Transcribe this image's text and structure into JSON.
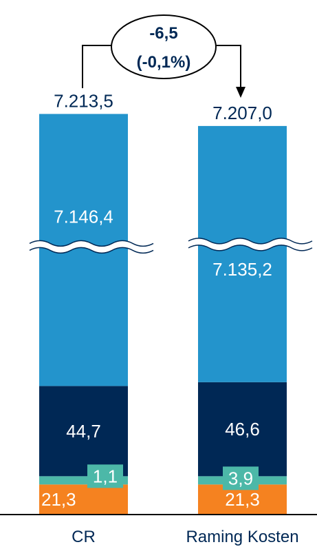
{
  "chart_data": {
    "type": "bar",
    "stacked": true,
    "axis_break": true,
    "categories": [
      "CR",
      "Raming Kosten"
    ],
    "totals": [
      "7.213,5",
      "7.207,0"
    ],
    "series": [
      {
        "values": [
          21.3,
          21.3
        ],
        "labels": [
          "21,3",
          "21,3"
        ],
        "color": "#f58220",
        "label_color": "#ffffff"
      },
      {
        "values": [
          1.1,
          3.9
        ],
        "labels": [
          "1,1",
          "3,9"
        ],
        "color": "#4cb8a8",
        "label_color": "#ffffff"
      },
      {
        "values": [
          44.7,
          46.6
        ],
        "labels": [
          "44,7",
          "46,6"
        ],
        "color": "#002855",
        "label_color": "#ffffff"
      },
      {
        "values": [
          7146.4,
          7135.2
        ],
        "labels": [
          "7.146,4",
          "7.135,2"
        ],
        "color": "#2394cc",
        "label_color": "#ffffff"
      }
    ],
    "difference": {
      "line1": "-6,5",
      "line2": "(-0,1%)"
    },
    "text_color": "#002855"
  }
}
